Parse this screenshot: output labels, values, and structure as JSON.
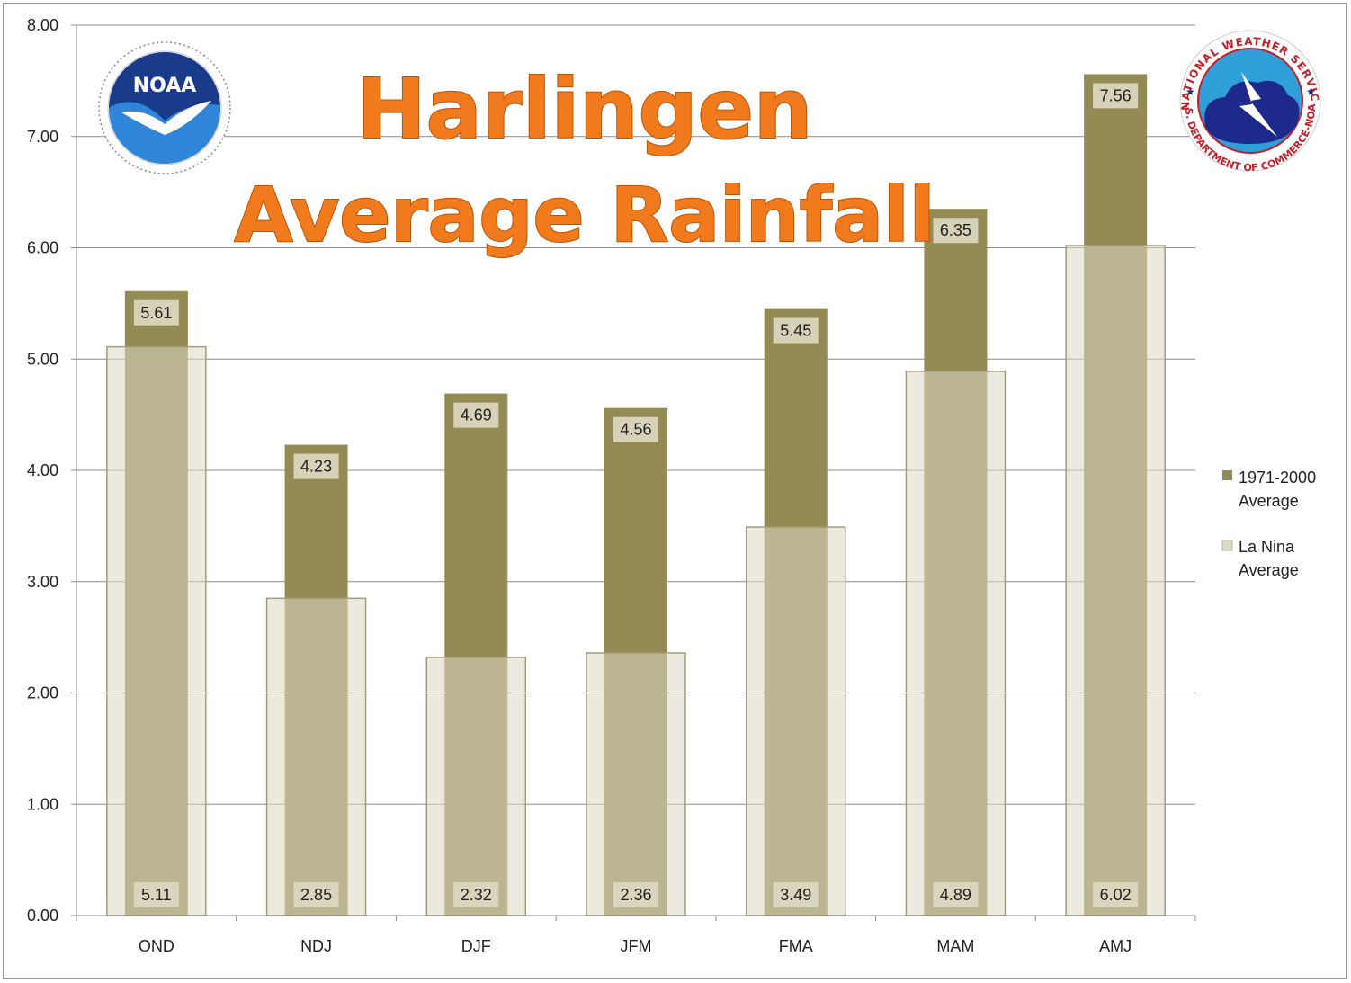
{
  "chart_data": {
    "type": "bar",
    "title_line1": "Harlingen",
    "title_line2": "Average Rainfall",
    "categories": [
      "OND",
      "NDJ",
      "DJF",
      "JFM",
      "FMA",
      "MAM",
      "AMJ"
    ],
    "series": [
      {
        "name": "1971-2000 Average",
        "name_line1": "1971-2000",
        "name_line2": "Average",
        "color": "#948a54",
        "values": [
          5.61,
          4.23,
          4.69,
          4.56,
          5.45,
          6.35,
          7.56
        ]
      },
      {
        "name": "La Nina Average",
        "name_line1": "La Nina",
        "name_line2": "Average",
        "color": "#ddd9c3",
        "values": [
          5.11,
          2.85,
          2.32,
          2.36,
          3.49,
          4.89,
          6.02
        ]
      }
    ],
    "yticks": [
      "0.00",
      "1.00",
      "2.00",
      "3.00",
      "4.00",
      "5.00",
      "6.00",
      "7.00",
      "8.00"
    ],
    "ylim": [
      0,
      8
    ],
    "grid": true,
    "legend_position": "right"
  },
  "logos": {
    "left": {
      "icon": "noaa-logo",
      "text": "NOAA"
    },
    "right": {
      "icon": "nws-logo",
      "ring_top": "NATIONAL WEATHER SERVICE",
      "ring_bottom": "U.S. DEPARTMENT OF COMMERCE-NOAA"
    }
  }
}
